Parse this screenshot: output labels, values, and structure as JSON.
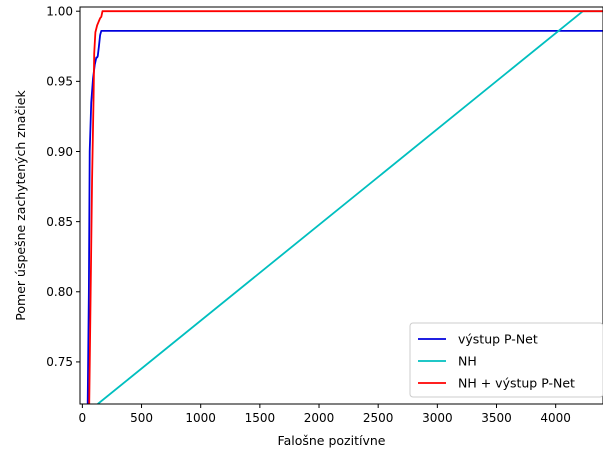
{
  "chart_data": {
    "type": "line",
    "xlabel": "Falošne pozitívne",
    "ylabel": "Pomer úspešne zachytených značiek",
    "xlim": [
      -20,
      4400
    ],
    "ylim": [
      0.72,
      1.003
    ],
    "x_ticks": [
      0,
      500,
      1000,
      1500,
      2000,
      2500,
      3000,
      3500,
      4000
    ],
    "y_ticks": [
      0.75,
      0.8,
      0.85,
      0.9,
      0.95,
      1.0
    ],
    "y_tick_labels": [
      "0.75",
      "0.80",
      "0.85",
      "0.90",
      "0.95",
      "1.00"
    ],
    "grid": false,
    "legend_position": "lower-right",
    "series": [
      {
        "name": "výstup P-Net",
        "color": "#0000dd",
        "x": [
          45,
          55,
          62,
          75,
          90,
          105,
          118,
          125,
          130,
          140,
          150,
          160,
          4400
        ],
        "y": [
          0.72,
          0.8,
          0.9,
          0.935,
          0.952,
          0.962,
          0.967,
          0.967,
          0.968,
          0.975,
          0.983,
          0.986,
          0.986
        ]
      },
      {
        "name": "NH",
        "color": "#00bfbf",
        "x": [
          130,
          4230,
          4400
        ],
        "y": [
          0.72,
          1.0,
          1.0
        ]
      },
      {
        "name": "NH + výstup P-Net",
        "color": "#ff0000",
        "x": [
          58,
          70,
          82,
          95,
          100,
          110,
          125,
          135,
          140,
          150,
          160,
          170,
          4400
        ],
        "y": [
          0.72,
          0.8,
          0.88,
          0.94,
          0.97,
          0.985,
          0.99,
          0.992,
          0.993,
          0.995,
          0.996,
          1.0,
          1.0
        ]
      }
    ]
  }
}
